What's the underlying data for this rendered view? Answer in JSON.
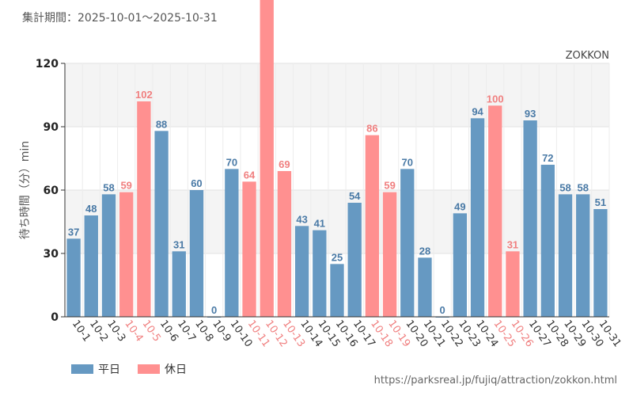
{
  "header": {
    "title": "集計期間：2025-10-01〜2025-10-31"
  },
  "footer": {
    "source": "https://parksreal.jp/fujiq/attraction/zokkon.html"
  },
  "legend": {
    "weekday": "平日",
    "holiday": "休日"
  },
  "colors": {
    "weekday": "#6699c2",
    "holiday": "#ff9090",
    "holiday_text": "#f08080",
    "weekday_text": "#4a7aa6"
  },
  "chart_data": {
    "type": "bar",
    "title": "ZOKKON",
    "xlabel": "",
    "ylabel": "待ち時間（分）min",
    "ylim": [
      0,
      120
    ],
    "yticks": [
      0,
      30,
      60,
      90,
      120
    ],
    "categories": [
      "10-1",
      "10-2",
      "10-3",
      "10-4",
      "10-5",
      "10-6",
      "10-7",
      "10-8",
      "10-9",
      "10-10",
      "10-11",
      "10-12",
      "10-13",
      "10-14",
      "10-15",
      "10-16",
      "10-17",
      "10-18",
      "10-19",
      "10-20",
      "10-21",
      "10-22",
      "10-23",
      "10-24",
      "10-25",
      "10-26",
      "10-27",
      "10-28",
      "10-29",
      "10-30",
      "10-31"
    ],
    "values": [
      37,
      48,
      58,
      59,
      102,
      88,
      31,
      60,
      0,
      70,
      64,
      null,
      69,
      43,
      41,
      25,
      54,
      86,
      59,
      70,
      28,
      0,
      49,
      94,
      100,
      31,
      93,
      72,
      58,
      58,
      51
    ],
    "holiday": [
      false,
      false,
      false,
      true,
      true,
      false,
      false,
      false,
      false,
      false,
      true,
      true,
      true,
      false,
      false,
      false,
      false,
      true,
      true,
      false,
      false,
      false,
      false,
      false,
      true,
      true,
      false,
      false,
      false,
      false,
      false
    ]
  }
}
